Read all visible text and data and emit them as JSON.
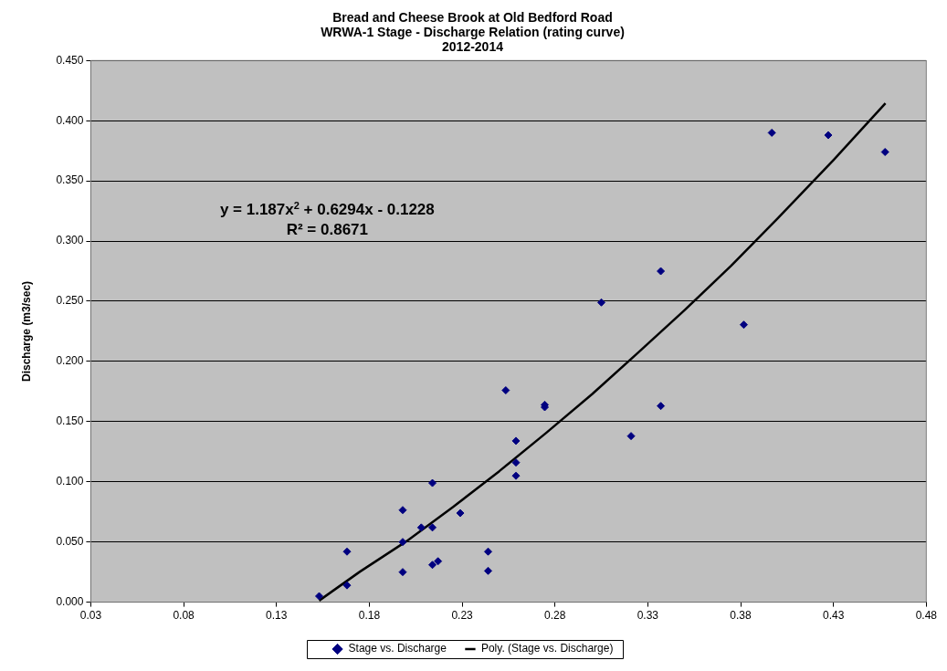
{
  "chart_data": {
    "type": "scatter",
    "title": "Bread and Cheese Brook at Old Bedford Road\nWRWA-1 Stage - Discharge Relation (rating curve)\n2012-2014",
    "ylabel": "Discharge (m3/sec)",
    "annotations": [
      "y = 1.187x$^{2}$ + 0.6294x - 0.1228",
      "R² = 0.8671"
    ],
    "series": [
      {
        "name": "Stage vs. Discharge",
        "type": "scatter",
        "color": "#000080",
        "x": [
          0.153,
          0.168,
          0.168,
          0.198,
          0.198,
          0.198,
          0.208,
          0.214,
          0.214,
          0.214,
          0.217,
          0.229,
          0.244,
          0.244,
          0.2535,
          0.259,
          0.259,
          0.259,
          0.2745,
          0.2745,
          0.305,
          0.321,
          0.337,
          0.337,
          0.3817,
          0.3968,
          0.4272,
          0.4578
        ],
        "values": [
          0.005,
          0.014,
          0.042,
          0.025,
          0.05,
          0.0765,
          0.062,
          0.062,
          0.099,
          0.031,
          0.034,
          0.074,
          0.042,
          0.026,
          0.176,
          0.134,
          0.116,
          0.105,
          0.164,
          0.162,
          0.249,
          0.138,
          0.275,
          0.163,
          0.2305,
          0.39,
          0.388,
          0.374
        ]
      },
      {
        "name": "Poly. (Stage vs. Discharge)",
        "type": "line",
        "color": "#000000",
        "marker": "none",
        "x": [
          0.153,
          0.175,
          0.2,
          0.225,
          0.25,
          0.275,
          0.3,
          0.325,
          0.35,
          0.375,
          0.4,
          0.43,
          0.458
        ],
        "values": [
          0.0013,
          0.0254,
          0.0506,
          0.0789,
          0.1088,
          0.1403,
          0.1728,
          0.2076,
          0.2429,
          0.2797,
          0.3189,
          0.3673,
          0.4145
        ]
      }
    ],
    "xlim": [
      0.03,
      0.48
    ],
    "xticks": [
      0.03,
      0.08,
      0.13,
      0.18,
      0.23,
      0.28,
      0.33,
      0.38,
      0.43,
      0.48
    ],
    "ylim": [
      0,
      0.45
    ],
    "yticks": [
      {
        "value": 0,
        "label": "0.000"
      },
      {
        "value": 0.05,
        "label": "0.050"
      },
      {
        "value": 0.1,
        "label": "0.100"
      },
      {
        "value": 0.15,
        "label": "0.150"
      },
      {
        "value": 0.2,
        "label": "0.200"
      },
      {
        "value": 0.25,
        "label": "0.250"
      },
      {
        "value": 0.3,
        "label": "0.300"
      },
      {
        "value": 0.35,
        "label": "0.350"
      },
      {
        "value": 0.4,
        "label": "0.400"
      },
      {
        "value": 0.45,
        "label": "0.450"
      }
    ],
    "grid": "y",
    "legend": "bottom",
    "marker": "diamond"
  }
}
